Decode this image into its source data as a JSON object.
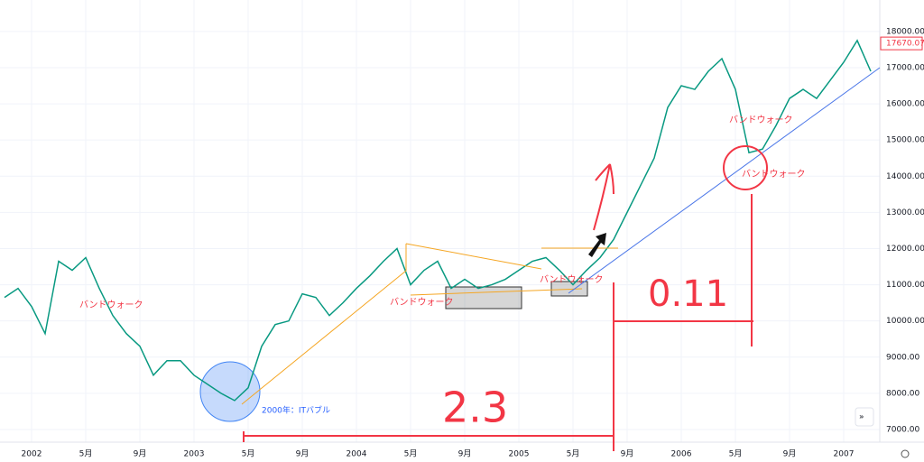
{
  "chart_data": {
    "type": "line",
    "categories": [
      null,
      null,
      "2002",
      null,
      null,
      null,
      "5月",
      null,
      null,
      null,
      "9月",
      null,
      null,
      null,
      "2003",
      null,
      null,
      null,
      "5月",
      null,
      null,
      null,
      "9月",
      null,
      null,
      null,
      "2004",
      null,
      null,
      null,
      "5月",
      null,
      null,
      null,
      "9月",
      null,
      null,
      null,
      "2005",
      null,
      null,
      null,
      "5月",
      null,
      null,
      null,
      "9月",
      null,
      null,
      null,
      "2006",
      null,
      null,
      null,
      "5月",
      null,
      null,
      null,
      "9月",
      null,
      null,
      null,
      "2007",
      null,
      null
    ],
    "series": [
      {
        "color": "#089981",
        "values": [
          10650,
          10900,
          10400,
          9650,
          11650,
          11400,
          11750,
          10900,
          10150,
          9650,
          9300,
          8500,
          8900,
          8900,
          8500,
          8250,
          8000,
          7800,
          8150,
          9300,
          9900,
          10000,
          10750,
          10650,
          10150,
          10500,
          10900,
          11250,
          11650,
          12000,
          11000,
          11400,
          11650,
          10900,
          11150,
          10900,
          11000,
          11150,
          11400,
          11650,
          11750,
          11400,
          11000,
          11400,
          11750,
          12250,
          13000,
          13750,
          14500,
          15900,
          16500,
          16400,
          16900,
          17250,
          16400,
          14650,
          14750,
          15400,
          16150,
          16400,
          16150,
          16650,
          17150,
          17750,
          16900
        ]
      }
    ],
    "ylim": [
      6650,
      18870
    ],
    "yticks": [
      {
        "value": 7000,
        "label": "7000.00"
      },
      {
        "value": 8000,
        "label": "8000.00"
      },
      {
        "value": 9000,
        "label": "9000.00"
      },
      {
        "value": 10000,
        "label": "10000.00"
      },
      {
        "value": 11000,
        "label": "11000.00"
      },
      {
        "value": 12000,
        "label": "12000.00"
      },
      {
        "value": 13000,
        "label": "13000.00"
      },
      {
        "value": 14000,
        "label": "14000.00"
      },
      {
        "value": 15000,
        "label": "15000.00"
      },
      {
        "value": 16000,
        "label": "16000.00"
      },
      {
        "value": 17000,
        "label": "17000.00"
      },
      {
        "value": 18000,
        "label": "18000.00"
      }
    ],
    "grid": true,
    "last_price": {
      "value": 17670.07,
      "label": "17670.07"
    },
    "annotations": [
      "バンドウォーク",
      "バンドウォーク",
      "バンドウォーク",
      "バンドウォーク",
      "バンドウォーク",
      "2000年：ITバブル",
      "2.3",
      "0.11"
    ]
  }
}
